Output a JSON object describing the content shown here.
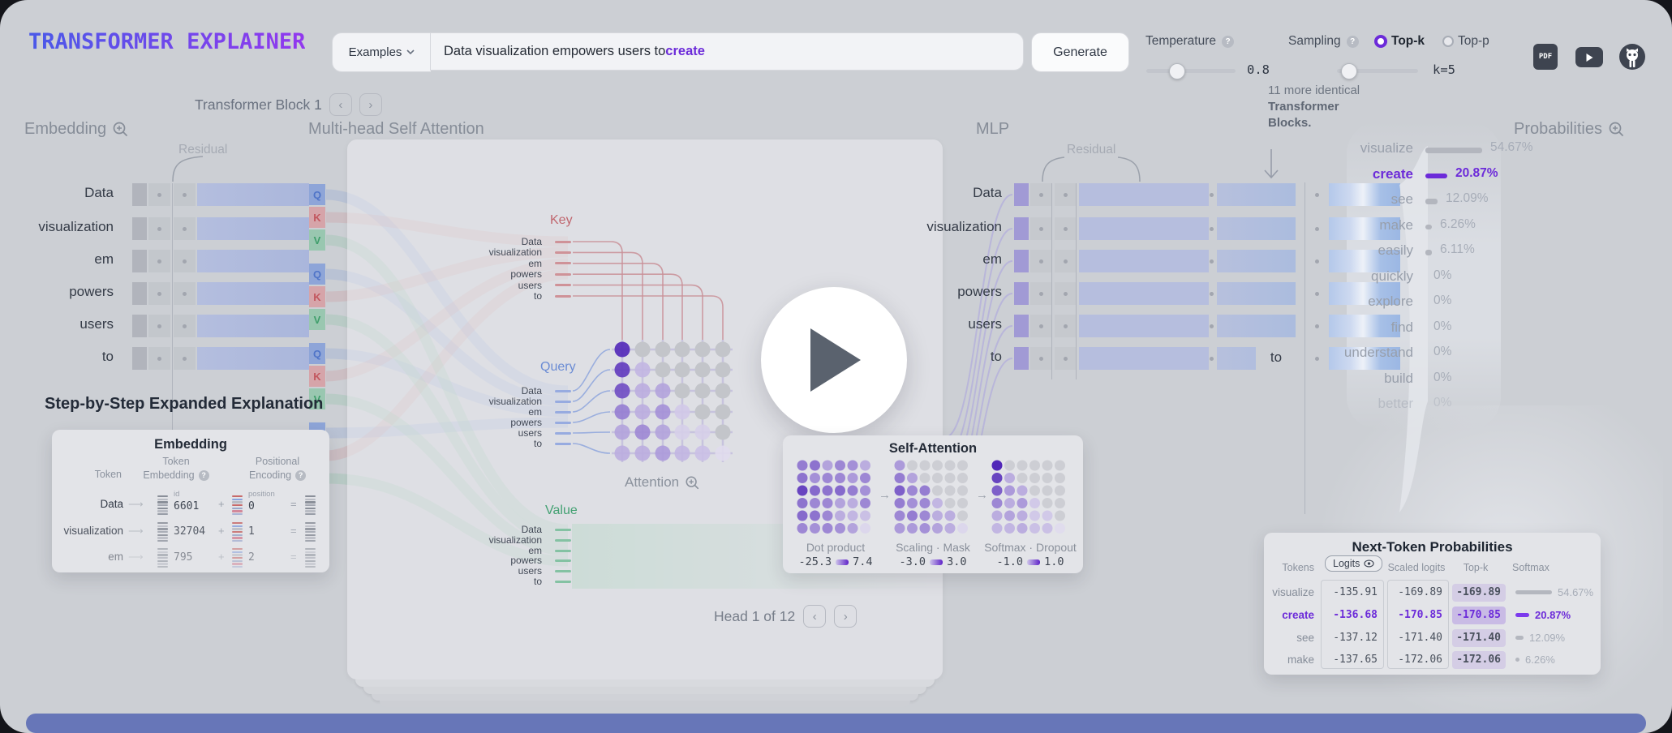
{
  "header": {
    "logo": "Transformer Explainer",
    "examples_label": "Examples",
    "input_prefix": "Data visualization empowers users to ",
    "input_highlight": "create",
    "generate_label": "Generate",
    "temperature": {
      "label": "Temperature",
      "value": "0.8"
    },
    "sampling": {
      "label": "Sampling",
      "topk_label": "Top-k",
      "topp_label": "Top-p",
      "selected": "Top-k",
      "k_value": "k=5"
    }
  },
  "nav": {
    "block_title": "Transformer Block 1"
  },
  "sections": {
    "embedding": "Embedding",
    "attention": "Multi-head Self Attention",
    "mlp": "MLP",
    "probabilities": "Probabilities",
    "residual": "Residual"
  },
  "tokens": [
    "Data",
    "visualization",
    "em",
    "powers",
    "users",
    "to"
  ],
  "qkv_letters": [
    "Q",
    "K",
    "V"
  ],
  "attention": {
    "key_label": "Key",
    "query_label": "Query",
    "value_label": "Value",
    "attention_label": "Attention",
    "head_label": "Head 1 of 12"
  },
  "more_blocks_note": {
    "line1": "11 more identical",
    "line2": "Transformer",
    "line3": "Blocks."
  },
  "final_token": "to",
  "step_heading": "Step-by-Step Expanded Explanation",
  "probabilities": [
    {
      "token": "visualize",
      "pct": "54.67%",
      "value": 54.67,
      "highlight": false
    },
    {
      "token": "create",
      "pct": "20.87%",
      "value": 20.87,
      "highlight": true
    },
    {
      "token": "see",
      "pct": "12.09%",
      "value": 12.09,
      "highlight": false
    },
    {
      "token": "make",
      "pct": "6.26%",
      "value": 6.26,
      "highlight": false
    },
    {
      "token": "easily",
      "pct": "6.11%",
      "value": 6.11,
      "highlight": false
    },
    {
      "token": "quickly",
      "pct": "0%",
      "value": 0,
      "highlight": false
    },
    {
      "token": "explore",
      "pct": "0%",
      "value": 0,
      "highlight": false
    },
    {
      "token": "find",
      "pct": "0%",
      "value": 0,
      "highlight": false
    },
    {
      "token": "understand",
      "pct": "0%",
      "value": 0,
      "highlight": false
    },
    {
      "token": "build",
      "pct": "0%",
      "value": 0,
      "highlight": false
    },
    {
      "token": "better",
      "pct": "0%",
      "value": 0,
      "highlight": false,
      "faded": true
    }
  ],
  "attention_matrix": [
    [
      1.0,
      -1,
      -1,
      -1,
      -1,
      -1
    ],
    [
      0.9,
      0.25,
      -1,
      -1,
      -1,
      -1
    ],
    [
      0.8,
      0.3,
      0.35,
      -1,
      -1,
      -1
    ],
    [
      0.55,
      0.3,
      0.45,
      0.15,
      -1,
      -1
    ],
    [
      0.35,
      0.5,
      0.35,
      0.12,
      0.12,
      -1
    ],
    [
      0.3,
      0.3,
      0.4,
      0.25,
      0.2,
      0.05
    ]
  ],
  "embedding_panel": {
    "title": "Embedding",
    "col_token": "Token",
    "col_token_embedding_line1": "Token",
    "col_token_embedding_line2": "Embedding",
    "col_positional_line1": "Positional",
    "col_positional_line2": "Encoding",
    "id_label": "id",
    "position_label": "position",
    "plus": "+",
    "equals": "=",
    "rows": [
      {
        "token": "Data",
        "id": "6601",
        "position": "0"
      },
      {
        "token": "visualization",
        "id": "32704",
        "position": "1"
      },
      {
        "token": "em",
        "id": "795",
        "position": "2"
      }
    ]
  },
  "self_attention_panel": {
    "title": "Self-Attention",
    "steps": [
      {
        "caption": "Dot product",
        "min": "-25.3",
        "max": "7.4"
      },
      {
        "caption": "Scaling · Mask",
        "min": "-3.0",
        "max": "3.0"
      },
      {
        "caption": "Softmax · Dropout",
        "min": "-1.0",
        "max": "1.0"
      }
    ],
    "grids": [
      [
        [
          0.55,
          0.6,
          0.35,
          0.5,
          0.45,
          0.3
        ],
        [
          0.6,
          0.45,
          0.5,
          0.5,
          0.4,
          0.5
        ],
        [
          0.85,
          0.65,
          0.6,
          0.65,
          0.55,
          0.45
        ],
        [
          0.6,
          0.5,
          0.5,
          0.35,
          0.3,
          0.5
        ],
        [
          0.65,
          0.6,
          0.5,
          0.3,
          0.25,
          0.2
        ],
        [
          0.5,
          0.45,
          0.5,
          0.45,
          0.35,
          0.08
        ]
      ],
      [
        [
          0.4,
          -1,
          -1,
          -1,
          -1,
          -1
        ],
        [
          0.55,
          0.35,
          -1,
          -1,
          -1,
          -1
        ],
        [
          0.7,
          0.5,
          0.55,
          -1,
          -1,
          -1
        ],
        [
          0.55,
          0.45,
          0.5,
          0.25,
          -1,
          -1
        ],
        [
          0.5,
          0.55,
          0.5,
          0.3,
          0.3,
          -1
        ],
        [
          0.4,
          0.4,
          0.45,
          0.35,
          0.3,
          0.08
        ]
      ],
      [
        [
          1.0,
          -1,
          -1,
          -1,
          -1,
          -1
        ],
        [
          0.85,
          0.3,
          -1,
          -1,
          -1,
          -1
        ],
        [
          0.7,
          0.4,
          0.3,
          -1,
          -1,
          -1
        ],
        [
          0.5,
          0.3,
          0.4,
          0.15,
          -1,
          -1
        ],
        [
          0.3,
          0.35,
          0.3,
          0.15,
          0.15,
          -1
        ],
        [
          0.25,
          0.25,
          0.3,
          0.2,
          0.2,
          0.05
        ]
      ]
    ]
  },
  "next_token_panel": {
    "title": "Next-Token Probabilities",
    "columns": {
      "tokens": "Tokens",
      "logits": "Logits",
      "scaled": "Scaled logits",
      "topk": "Top-k",
      "softmax": "Softmax"
    },
    "rows": [
      {
        "token": "visualize",
        "logits": "-135.91",
        "scaled": "-169.89",
        "topk": "-169.89",
        "softmax": "54.67%",
        "value": 54.67,
        "highlight": false
      },
      {
        "token": "create",
        "logits": "-136.68",
        "scaled": "-170.85",
        "topk": "-170.85",
        "softmax": "20.87%",
        "value": 20.87,
        "highlight": true
      },
      {
        "token": "see",
        "logits": "-137.12",
        "scaled": "-171.40",
        "topk": "-171.40",
        "softmax": "12.09%",
        "value": 12.09,
        "highlight": false
      },
      {
        "token": "make",
        "logits": "-137.65",
        "scaled": "-172.06",
        "topk": "-172.06",
        "softmax": "6.26%",
        "value": 6.26,
        "highlight": false
      }
    ]
  },
  "colors": {
    "accent_purple": "#6c2bd9",
    "query_blue": "#5577cc",
    "key_red": "#c2565e",
    "value_green": "#3f9e6b"
  }
}
